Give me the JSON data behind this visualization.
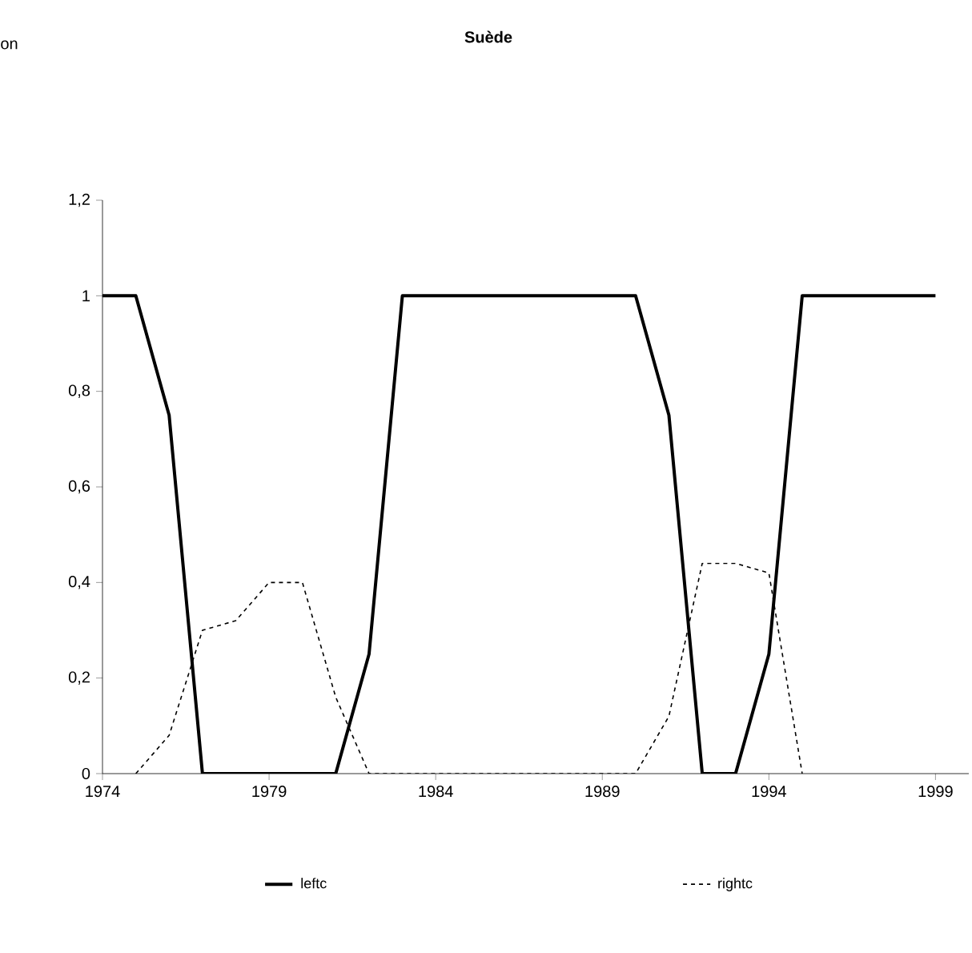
{
  "chart_data": {
    "type": "line",
    "title": "Suède",
    "annotations": [
      "on"
    ],
    "x": [
      1974,
      1975,
      1976,
      1977,
      1978,
      1979,
      1980,
      1981,
      1982,
      1983,
      1984,
      1985,
      1986,
      1987,
      1988,
      1989,
      1990,
      1991,
      1992,
      1993,
      1994,
      1995,
      1996,
      1997,
      1998,
      1999
    ],
    "series": [
      {
        "name": "leftc",
        "color": "#000000",
        "line_style": "solid",
        "values": [
          1,
          1,
          0.75,
          0,
          0,
          0,
          0,
          0,
          0.25,
          1,
          1,
          1,
          1,
          1,
          1,
          1,
          1,
          0.75,
          0,
          0,
          0.25,
          1,
          1,
          1,
          1,
          1
        ]
      },
      {
        "name": "rightc",
        "color": "#000000",
        "line_style": "dashed",
        "values": [
          null,
          0,
          0.08,
          0.3,
          0.32,
          0.4,
          0.4,
          0.16,
          0,
          0,
          0,
          0,
          0,
          0,
          0,
          0,
          0,
          0.12,
          0.44,
          0.44,
          0.42,
          0,
          null,
          null,
          null,
          null
        ]
      }
    ],
    "xlim": [
      1974,
      2000
    ],
    "xticks": [
      1974,
      1979,
      1984,
      1989,
      1994,
      1999
    ],
    "ylim": [
      0,
      1.2
    ],
    "yticks": [
      {
        "value": 0,
        "label": "0"
      },
      {
        "value": 0.2,
        "label": "0,2"
      },
      {
        "value": 0.4,
        "label": "0,4"
      },
      {
        "value": 0.6,
        "label": "0,6"
      },
      {
        "value": 0.8,
        "label": "0,8"
      },
      {
        "value": 1,
        "label": "1"
      },
      {
        "value": 1.2,
        "label": "1,2"
      }
    ],
    "grid": false,
    "legend": "bottom",
    "marker": "none"
  }
}
